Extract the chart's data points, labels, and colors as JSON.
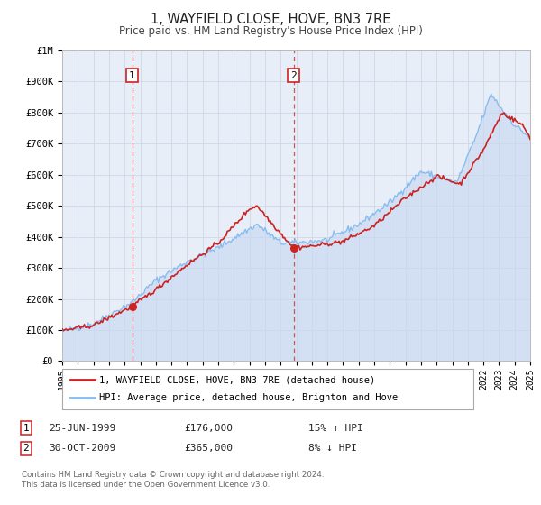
{
  "title": "1, WAYFIELD CLOSE, HOVE, BN3 7RE",
  "subtitle": "Price paid vs. HM Land Registry's House Price Index (HPI)",
  "background_color": "#ffffff",
  "plot_bg_color": "#e8eef8",
  "grid_color": "#d0d8e8",
  "sale1": {
    "date_label": "25-JUN-1999",
    "date_x": 1999.48,
    "price": 176000,
    "hpi_diff": "15% ↑ HPI"
  },
  "sale2": {
    "date_label": "30-OCT-2009",
    "date_x": 2009.83,
    "price": 365000,
    "hpi_diff": "8% ↓ HPI"
  },
  "vline_color": "#cc4444",
  "dot_color": "#cc2222",
  "price_line_color": "#cc2222",
  "hpi_line_color": "#88bbee",
  "hpi_fill_color": "#c5d8f0",
  "xmin": 1995,
  "xmax": 2025,
  "ymin": 0,
  "ymax": 1000000,
  "yticks": [
    0,
    100000,
    200000,
    300000,
    400000,
    500000,
    600000,
    700000,
    800000,
    900000,
    1000000
  ],
  "ytick_labels": [
    "£0",
    "£100K",
    "£200K",
    "£300K",
    "£400K",
    "£500K",
    "£600K",
    "£700K",
    "£800K",
    "£900K",
    "£1M"
  ],
  "xticks": [
    1995,
    1996,
    1997,
    1998,
    1999,
    2000,
    2001,
    2002,
    2003,
    2004,
    2005,
    2006,
    2007,
    2008,
    2009,
    2010,
    2011,
    2012,
    2013,
    2014,
    2015,
    2016,
    2017,
    2018,
    2019,
    2020,
    2021,
    2022,
    2023,
    2024,
    2025
  ],
  "legend_line1": "1, WAYFIELD CLOSE, HOVE, BN3 7RE (detached house)",
  "legend_line2": "HPI: Average price, detached house, Brighton and Hove",
  "footer1": "Contains HM Land Registry data © Crown copyright and database right 2024.",
  "footer2": "This data is licensed under the Open Government Licence v3.0.",
  "sale1_price_fmt": "£176,000",
  "sale2_price_fmt": "£365,000"
}
